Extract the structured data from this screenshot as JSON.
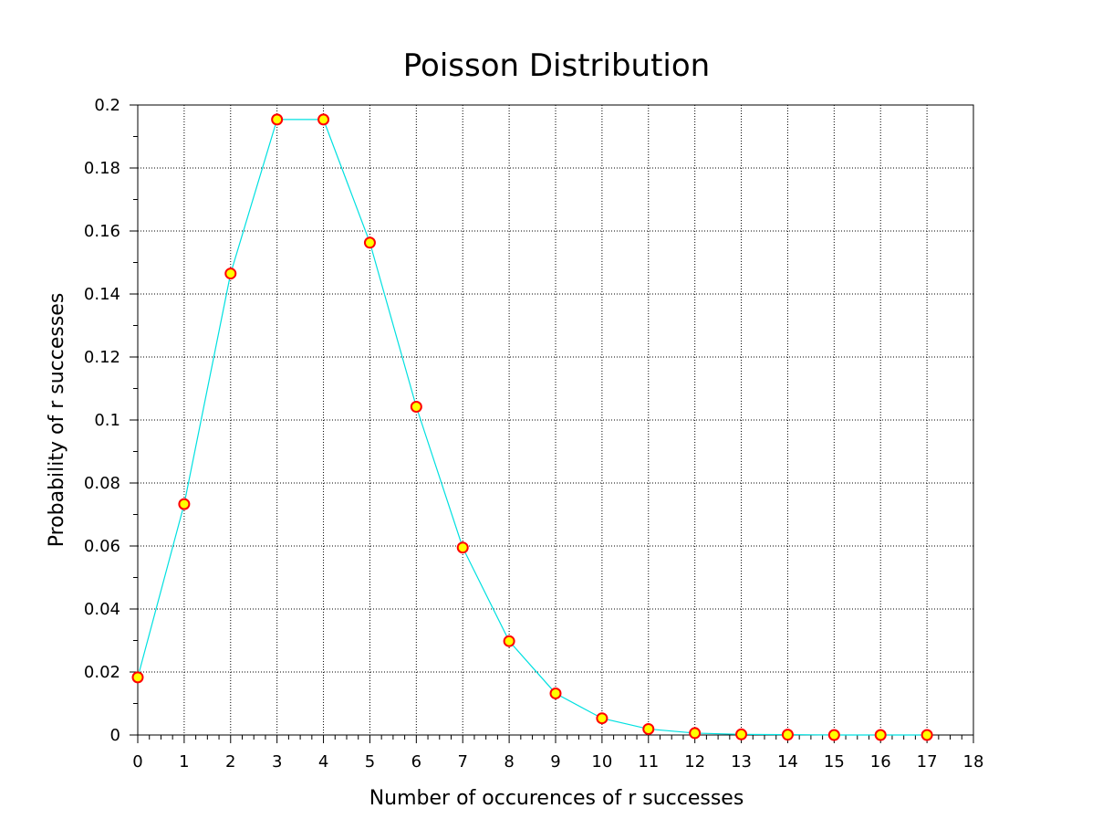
{
  "chart_data": {
    "type": "line",
    "title": "Poisson Distribution",
    "xlabel": "Number of occurences of r successes",
    "ylabel": "Probability of r successes",
    "xlim": [
      0,
      18
    ],
    "ylim": [
      0,
      0.2
    ],
    "x_ticks": [
      0,
      1,
      2,
      3,
      4,
      5,
      6,
      7,
      8,
      9,
      10,
      11,
      12,
      13,
      14,
      15,
      16,
      17,
      18
    ],
    "x_tick_labels": [
      "0",
      "1",
      "2",
      "3",
      "4",
      "5",
      "6",
      "7",
      "8",
      "9",
      "10",
      "11",
      "12",
      "13",
      "14",
      "15",
      "16",
      "17",
      "18"
    ],
    "y_ticks": [
      0,
      0.02,
      0.04,
      0.06,
      0.08,
      0.1,
      0.12,
      0.14,
      0.16,
      0.18,
      0.2
    ],
    "y_tick_labels": [
      "0",
      "0.02",
      "0.04",
      "0.06",
      "0.08",
      "0.1",
      "0.12",
      "0.14",
      "0.16",
      "0.18",
      "0.2"
    ],
    "grid": true,
    "series": [
      {
        "x": [
          0,
          1,
          2,
          3,
          4,
          5,
          6,
          7,
          8,
          9,
          10,
          11,
          12,
          13,
          14,
          15,
          16,
          17
        ],
        "values": [
          0.0183,
          0.0733,
          0.1465,
          0.1954,
          0.1954,
          0.1563,
          0.1042,
          0.0595,
          0.0298,
          0.0132,
          0.0053,
          0.0019,
          0.0006,
          0.0002,
          0.0001,
          0.0,
          0.0,
          0.0
        ],
        "line_color": "#00e0e0",
        "marker_fill": "#ffff00",
        "marker_edge": "#ff0000"
      }
    ]
  }
}
